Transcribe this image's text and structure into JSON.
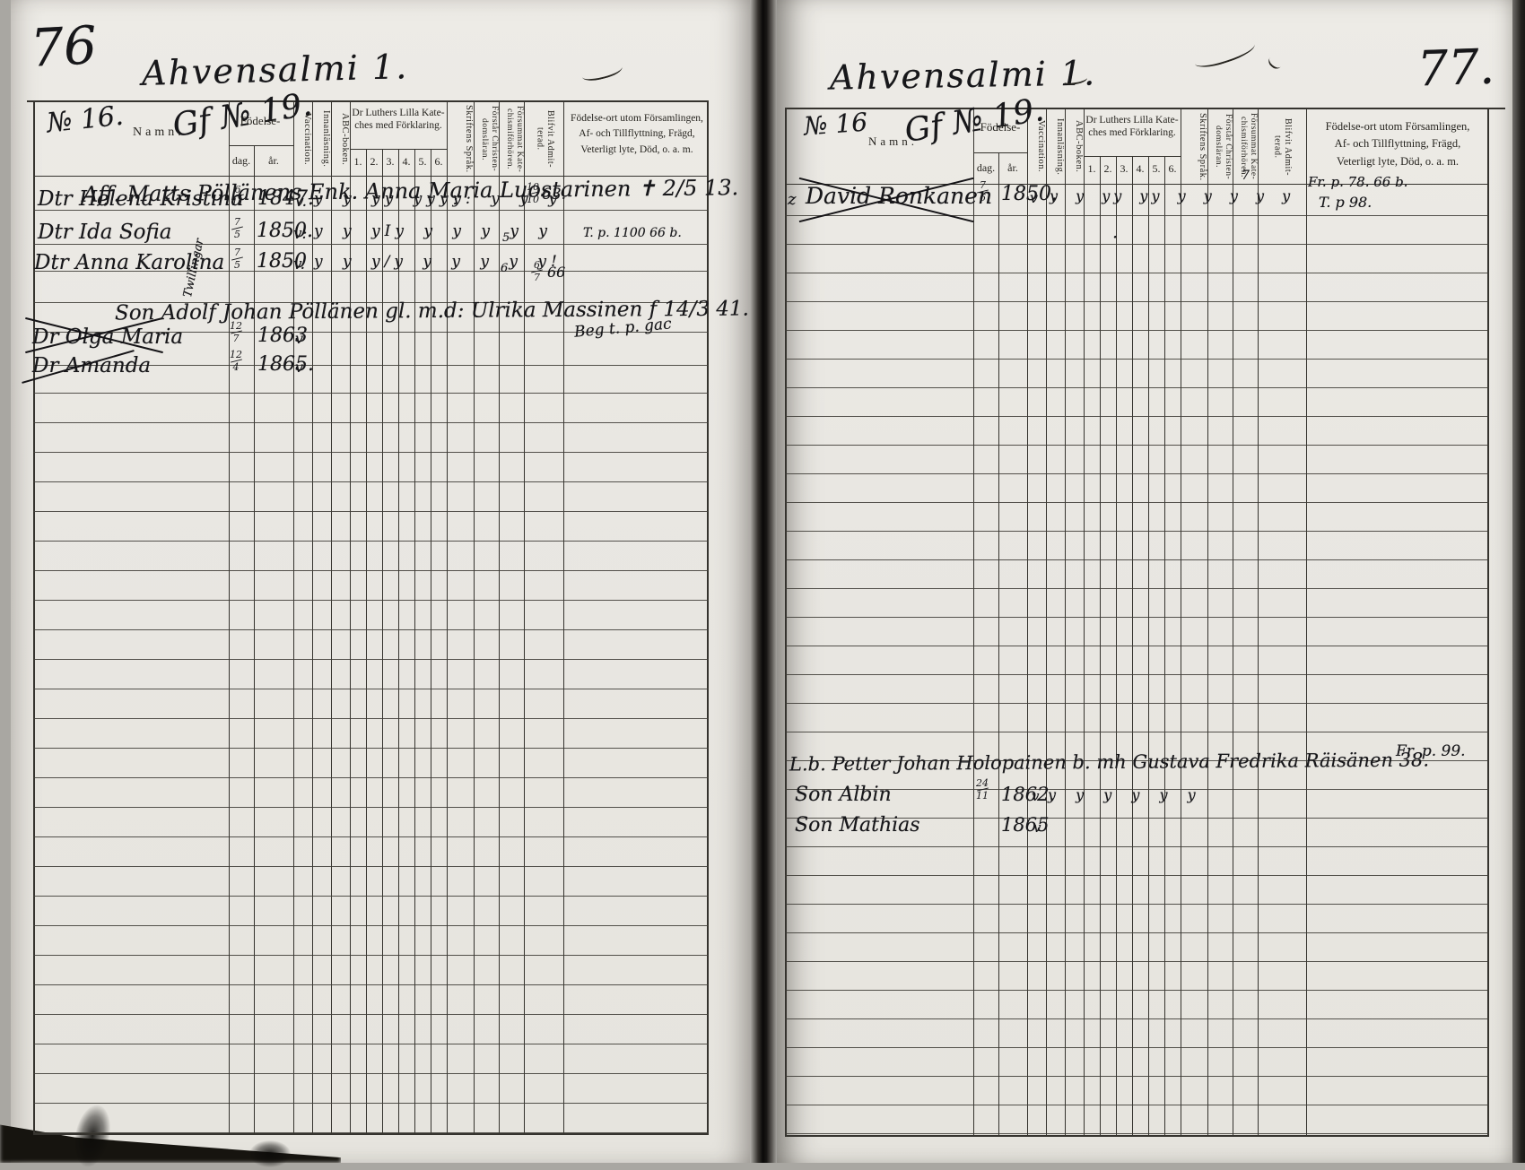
{
  "colors": {
    "paper": "#e9e7e2",
    "ink_print": "#26241f",
    "ink_hand": "#17171a"
  },
  "headers": {
    "namn": "Namn.",
    "fodelse": "Födelse-",
    "dag": "dag.",
    "ar": "år.",
    "vaccination": "Vaccination.",
    "innanlasning": "Innanläsning.",
    "abc": "ABC-boken.",
    "kateches_line1": "Dr Luthers Lilla Kate-",
    "kateches_line2": "ches med Förklaring.",
    "k1": "1.",
    "k2": "2.",
    "k3": "3.",
    "k4": "4.",
    "k5": "5.",
    "k6": "6.",
    "skriftens": "Skriftens Språk.",
    "forstar_1": "Förstår Christen-",
    "forstar_2": "domsläran.",
    "forsummat_1": "Försummat Kate-",
    "forsummat_2": "chismiförhören.",
    "blifvit_1": "Blifvit Admit-",
    "blifvit_2": "terad.",
    "remark_1": "Födelse-ort utom Församlingen,",
    "remark_2": "Af- och Tillflyttning, Frägd,",
    "remark_3": "Veterligt lyte, Död, o. a. m."
  },
  "left": {
    "page_number": "76",
    "title": "Ahvensalmi 1.",
    "no_label": "№ 16.",
    "annotation": "Gf № 19.",
    "family1_header": "Aff. Matts Pöllänens Enk. Anna Maria Luostarinen ✝ 2/5 13.",
    "helena": {
      "name": "Dtr Helena Kristina",
      "dag": "6",
      "dag2": "11",
      "year": "1847.",
      "vacc": "v.",
      "marks": "y y yy yyyy: y y y",
      "sprak": ":",
      "admit1": "10",
      "admit2": "10",
      "admit_year": "63."
    },
    "ida": {
      "name": "Dtr Ida Sofia",
      "dag": "7",
      "dag2": "5",
      "year": "1850.",
      "vacc": "v:",
      "marks": "y y yIy y y y y y",
      "tick": "5",
      "remark": "T. p. 1100 66 b."
    },
    "anna": {
      "name": "Dtr Anna Karolina",
      "dag": "7",
      "dag2": "5",
      "year": "1850",
      "vacc": "v.",
      "marks": "y y y/y y y y y y!",
      "tick": "6",
      "admit1": "6",
      "admit2": "7",
      "admit_year": "66"
    },
    "twins_note": "Twillingar",
    "family2_header": "Son Adolf Johan Pöllänen gl. m.d: Ulrika Massinen f 14/3 41.",
    "olga": {
      "name": "Dr Olga Maria",
      "dag": "12",
      "dag2": "7",
      "year": "1863",
      "vacc": "v",
      "remark": "Beg t. p. gac"
    },
    "amanda": {
      "name": "Dr Amanda",
      "dag": "12",
      "dag2": "4",
      "year": "1865.",
      "vacc": "v"
    }
  },
  "right": {
    "page_number": "77.",
    "title": "Ahvensalmi 1.",
    "no_label": "№ 16",
    "annotation": "Gf № 19.",
    "prefix_mark": "z",
    "david": {
      "name": "David Ronkanen",
      "dag": "7",
      "dag2": "6",
      "year": "1850.",
      "vacc": "v",
      "marks": "y y yy yy y y y y y",
      "forsummat": "7",
      "remark1": "Fr. p. 78. 66 b.",
      "remark2": "T. p 98."
    },
    "ink_tick": "·",
    "family_header": "L.b. Petter Johan Holopainen b. mh Gustava Fredrika Räisänen 38.",
    "family_remark": "Fr. p. 99.",
    "albin": {
      "name": "Son Albin",
      "dag": "24",
      "dag2": "11",
      "year": "1862.",
      "vacc": "v",
      "marks": "y y y y y y"
    },
    "mathias": {
      "name": "Son Mathias",
      "year": "1865",
      "vacc": "v"
    }
  }
}
